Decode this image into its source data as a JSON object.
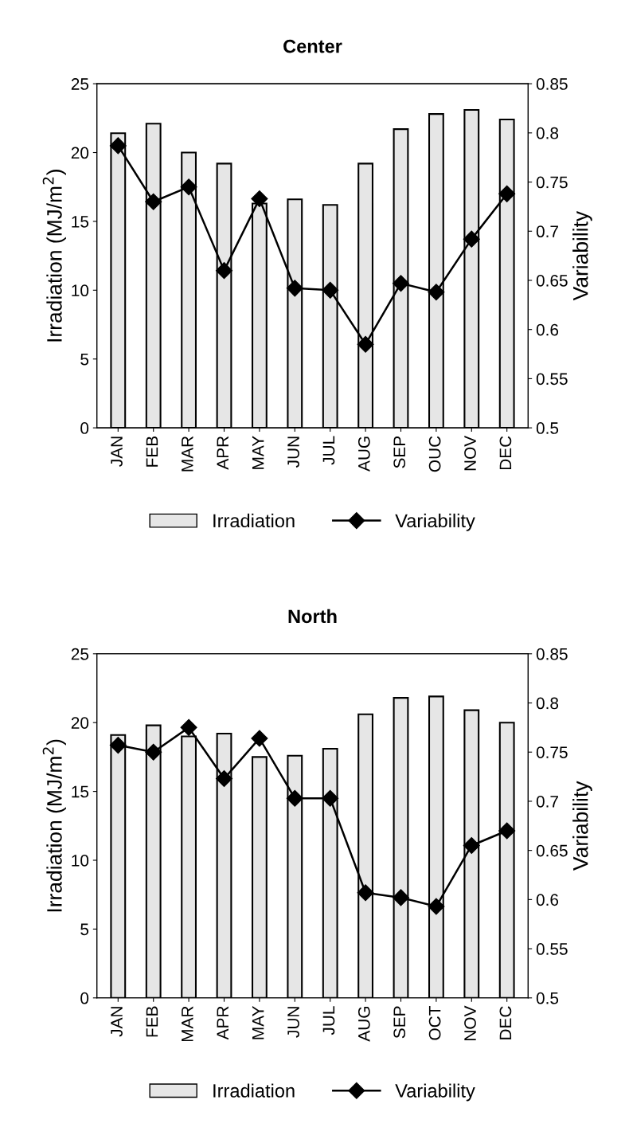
{
  "chart_data": [
    {
      "type": "bar",
      "title": "Center",
      "ylabel": "Irradiation (MJ/m$^{2}$)",
      "y2label": "Variability",
      "categories": [
        "JAN",
        "FEB",
        "MAR",
        "APR",
        "MAY",
        "JUN",
        "JUL",
        "AUG",
        "SEP",
        "OUC",
        "NOV",
        "DEC"
      ],
      "series": [
        {
          "name": "Irradiation",
          "color": "#e6e6e6",
          "values": [
            21.4,
            22.1,
            20.0,
            19.2,
            16.3,
            16.6,
            16.2,
            19.2,
            21.7,
            22.8,
            23.1,
            22.4
          ]
        },
        {
          "name": "Variability",
          "type": "line",
          "axis": "y2",
          "color": "#000000",
          "marker": "diamond",
          "values": [
            0.787,
            0.73,
            0.745,
            0.66,
            0.733,
            0.642,
            0.64,
            0.585,
            0.647,
            0.638,
            0.692,
            0.738
          ]
        }
      ],
      "ylim": [
        0,
        25
      ],
      "yticks": [
        0,
        5,
        10,
        15,
        20,
        25
      ],
      "y2lim": [
        0.5,
        0.85
      ],
      "y2ticks": [
        0.5,
        0.55,
        0.6,
        0.65,
        0.7,
        0.75,
        0.8,
        0.85
      ],
      "legend": "bottom",
      "grid": false
    },
    {
      "type": "bar",
      "title": "North",
      "ylabel": "Irradiation (MJ/m$^{2}$)",
      "y2label": "Variability",
      "categories": [
        "JAN",
        "FEB",
        "MAR",
        "APR",
        "MAY",
        "JUN",
        "JUL",
        "AUG",
        "SEP",
        "OCT",
        "NOV",
        "DEC"
      ],
      "series": [
        {
          "name": "Irradiation",
          "color": "#e6e6e6",
          "values": [
            19.1,
            19.8,
            19.0,
            19.2,
            17.5,
            17.6,
            18.1,
            20.6,
            21.8,
            21.9,
            20.9,
            20.0
          ]
        },
        {
          "name": "Variability",
          "type": "line",
          "axis": "y2",
          "color": "#000000",
          "marker": "diamond",
          "values": [
            0.757,
            0.75,
            0.775,
            0.723,
            0.764,
            0.703,
            0.703,
            0.607,
            0.602,
            0.593,
            0.655,
            0.67
          ]
        }
      ],
      "ylim": [
        0,
        25
      ],
      "yticks": [
        0,
        5,
        10,
        15,
        20,
        25
      ],
      "y2lim": [
        0.5,
        0.85
      ],
      "y2ticks": [
        0.5,
        0.55,
        0.6,
        0.65,
        0.7,
        0.75,
        0.8,
        0.85
      ],
      "legend": "bottom",
      "grid": false
    }
  ]
}
